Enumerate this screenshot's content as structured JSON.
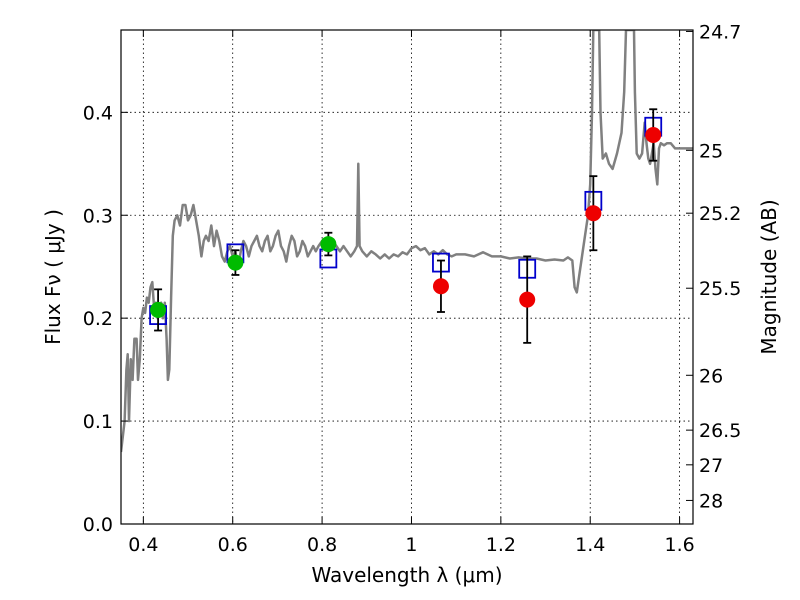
{
  "chart_data": {
    "type": "scatter",
    "title": "",
    "xlabel": "Wavelength  λ (μm)",
    "ylabel": "Flux  Fν  ( μJy )",
    "y2label": "Magnitude (AB)",
    "xlim": [
      0.35,
      1.63
    ],
    "ylim": [
      0.0,
      0.48
    ],
    "grid": true,
    "legend": "none",
    "xticks": [
      {
        "v": 0.4,
        "label": "0.4"
      },
      {
        "v": 0.6,
        "label": "0.6"
      },
      {
        "v": 0.8,
        "label": "0.8"
      },
      {
        "v": 1.0,
        "label": "1"
      },
      {
        "v": 1.2,
        "label": "1.2"
      },
      {
        "v": 1.4,
        "label": "1.4"
      },
      {
        "v": 1.6,
        "label": "1.6"
      }
    ],
    "yticks": [
      {
        "v": 0.0,
        "label": "0.0"
      },
      {
        "v": 0.1,
        "label": "0.1"
      },
      {
        "v": 0.2,
        "label": "0.2"
      },
      {
        "v": 0.3,
        "label": "0.3"
      },
      {
        "v": 0.4,
        "label": "0.4"
      }
    ],
    "y2ticks": [
      {
        "label": "24.7",
        "flux": 0.4786
      },
      {
        "label": "25",
        "flux": 0.3631
      },
      {
        "label": "25.2",
        "flux": 0.302
      },
      {
        "label": "25.5",
        "flux": 0.2291
      },
      {
        "label": "26",
        "flux": 0.1445
      },
      {
        "label": "26.5",
        "flux": 0.0912
      },
      {
        "label": "27",
        "flux": 0.0575
      },
      {
        "label": "28",
        "flux": 0.0229
      }
    ],
    "colors": {
      "spectrum": "#808080",
      "green_points": "#00bb00",
      "red_points": "#ee0000",
      "model_boxes": "#0000cc",
      "errorbars": "#000000"
    },
    "series": [
      {
        "kind": "line",
        "color": "#808080",
        "points": [
          [
            0.35,
            0.07
          ],
          [
            0.358,
            0.1
          ],
          [
            0.362,
            0.15
          ],
          [
            0.365,
            0.165
          ],
          [
            0.368,
            0.1
          ],
          [
            0.372,
            0.16
          ],
          [
            0.376,
            0.14
          ],
          [
            0.38,
            0.18
          ],
          [
            0.385,
            0.18
          ],
          [
            0.388,
            0.14
          ],
          [
            0.392,
            0.16
          ],
          [
            0.396,
            0.2
          ],
          [
            0.4,
            0.21
          ],
          [
            0.404,
            0.205
          ],
          [
            0.408,
            0.22
          ],
          [
            0.412,
            0.215
          ],
          [
            0.416,
            0.23
          ],
          [
            0.42,
            0.235
          ],
          [
            0.424,
            0.21
          ],
          [
            0.428,
            0.215
          ],
          [
            0.432,
            0.2
          ],
          [
            0.436,
            0.21
          ],
          [
            0.44,
            0.215
          ],
          [
            0.444,
            0.2
          ],
          [
            0.448,
            0.215
          ],
          [
            0.452,
            0.18
          ],
          [
            0.455,
            0.14
          ],
          [
            0.458,
            0.15
          ],
          [
            0.462,
            0.22
          ],
          [
            0.466,
            0.28
          ],
          [
            0.47,
            0.295
          ],
          [
            0.476,
            0.3
          ],
          [
            0.482,
            0.29
          ],
          [
            0.488,
            0.31
          ],
          [
            0.494,
            0.31
          ],
          [
            0.5,
            0.295
          ],
          [
            0.506,
            0.3
          ],
          [
            0.512,
            0.31
          ],
          [
            0.518,
            0.295
          ],
          [
            0.524,
            0.28
          ],
          [
            0.53,
            0.26
          ],
          [
            0.535,
            0.275
          ],
          [
            0.54,
            0.28
          ],
          [
            0.546,
            0.275
          ],
          [
            0.552,
            0.29
          ],
          [
            0.558,
            0.27
          ],
          [
            0.564,
            0.285
          ],
          [
            0.57,
            0.275
          ],
          [
            0.576,
            0.26
          ],
          [
            0.582,
            0.255
          ],
          [
            0.588,
            0.265
          ],
          [
            0.594,
            0.27
          ],
          [
            0.6,
            0.26
          ],
          [
            0.606,
            0.265
          ],
          [
            0.612,
            0.25
          ],
          [
            0.618,
            0.265
          ],
          [
            0.624,
            0.275
          ],
          [
            0.63,
            0.27
          ],
          [
            0.636,
            0.26
          ],
          [
            0.642,
            0.27
          ],
          [
            0.648,
            0.275
          ],
          [
            0.654,
            0.28
          ],
          [
            0.66,
            0.27
          ],
          [
            0.666,
            0.265
          ],
          [
            0.672,
            0.275
          ],
          [
            0.678,
            0.28
          ],
          [
            0.684,
            0.265
          ],
          [
            0.69,
            0.27
          ],
          [
            0.696,
            0.28
          ],
          [
            0.702,
            0.285
          ],
          [
            0.708,
            0.27
          ],
          [
            0.714,
            0.265
          ],
          [
            0.72,
            0.255
          ],
          [
            0.726,
            0.27
          ],
          [
            0.732,
            0.28
          ],
          [
            0.738,
            0.275
          ],
          [
            0.744,
            0.26
          ],
          [
            0.75,
            0.265
          ],
          [
            0.756,
            0.275
          ],
          [
            0.762,
            0.27
          ],
          [
            0.768,
            0.26
          ],
          [
            0.774,
            0.265
          ],
          [
            0.78,
            0.27
          ],
          [
            0.786,
            0.265
          ],
          [
            0.792,
            0.27
          ],
          [
            0.8,
            0.275
          ],
          [
            0.808,
            0.27
          ],
          [
            0.816,
            0.265
          ],
          [
            0.824,
            0.275
          ],
          [
            0.832,
            0.27
          ],
          [
            0.84,
            0.265
          ],
          [
            0.848,
            0.27
          ],
          [
            0.856,
            0.265
          ],
          [
            0.864,
            0.26
          ],
          [
            0.872,
            0.265
          ],
          [
            0.878,
            0.27
          ],
          [
            0.881,
            0.35
          ],
          [
            0.884,
            0.27
          ],
          [
            0.89,
            0.265
          ],
          [
            0.9,
            0.26
          ],
          [
            0.91,
            0.265
          ],
          [
            0.92,
            0.262
          ],
          [
            0.93,
            0.258
          ],
          [
            0.94,
            0.262
          ],
          [
            0.95,
            0.258
          ],
          [
            0.96,
            0.262
          ],
          [
            0.97,
            0.26
          ],
          [
            0.98,
            0.264
          ],
          [
            0.99,
            0.262
          ],
          [
            1.0,
            0.268
          ],
          [
            1.01,
            0.27
          ],
          [
            1.02,
            0.266
          ],
          [
            1.03,
            0.268
          ],
          [
            1.04,
            0.262
          ],
          [
            1.05,
            0.265
          ],
          [
            1.06,
            0.262
          ],
          [
            1.07,
            0.266
          ],
          [
            1.08,
            0.262
          ],
          [
            1.09,
            0.26
          ],
          [
            1.1,
            0.262
          ],
          [
            1.12,
            0.262
          ],
          [
            1.14,
            0.26
          ],
          [
            1.16,
            0.264
          ],
          [
            1.18,
            0.26
          ],
          [
            1.2,
            0.26
          ],
          [
            1.22,
            0.258
          ],
          [
            1.24,
            0.259
          ],
          [
            1.26,
            0.258
          ],
          [
            1.28,
            0.258
          ],
          [
            1.3,
            0.256
          ],
          [
            1.32,
            0.257
          ],
          [
            1.34,
            0.256
          ],
          [
            1.35,
            0.259
          ],
          [
            1.36,
            0.256
          ],
          [
            1.365,
            0.23
          ],
          [
            1.37,
            0.225
          ],
          [
            1.375,
            0.24
          ],
          [
            1.385,
            0.27
          ],
          [
            1.395,
            0.3
          ],
          [
            1.4,
            0.33
          ],
          [
            1.404,
            0.4
          ],
          [
            1.407,
            0.48
          ],
          [
            1.42,
            0.48
          ],
          [
            1.423,
            0.4
          ],
          [
            1.428,
            0.355
          ],
          [
            1.435,
            0.36
          ],
          [
            1.442,
            0.35
          ],
          [
            1.45,
            0.345
          ],
          [
            1.46,
            0.36
          ],
          [
            1.47,
            0.38
          ],
          [
            1.476,
            0.42
          ],
          [
            1.48,
            0.48
          ],
          [
            1.498,
            0.48
          ],
          [
            1.5,
            0.42
          ],
          [
            1.504,
            0.36
          ],
          [
            1.51,
            0.355
          ],
          [
            1.516,
            0.36
          ],
          [
            1.522,
            0.39
          ],
          [
            1.526,
            0.37
          ],
          [
            1.53,
            0.355
          ],
          [
            1.534,
            0.35
          ],
          [
            1.538,
            0.36
          ],
          [
            1.542,
            0.37
          ],
          [
            1.546,
            0.345
          ],
          [
            1.55,
            0.33
          ],
          [
            1.554,
            0.365
          ],
          [
            1.558,
            0.37
          ],
          [
            1.565,
            0.368
          ],
          [
            1.572,
            0.37
          ],
          [
            1.58,
            0.37
          ],
          [
            1.59,
            0.365
          ],
          [
            1.6,
            0.365
          ],
          [
            1.61,
            0.365
          ],
          [
            1.62,
            0.365
          ],
          [
            1.63,
            0.365
          ]
        ]
      },
      {
        "kind": "points",
        "color": "#00bb00",
        "points": [
          {
            "x": 0.433,
            "y": 0.208,
            "yerr": 0.02
          },
          {
            "x": 0.606,
            "y": 0.254,
            "yerr": 0.012
          },
          {
            "x": 0.814,
            "y": 0.272,
            "yerr": 0.011
          }
        ]
      },
      {
        "kind": "points",
        "color": "#ee0000",
        "points": [
          {
            "x": 1.066,
            "y": 0.231,
            "yerr": 0.025
          },
          {
            "x": 1.259,
            "y": 0.218,
            "yerr": 0.042
          },
          {
            "x": 1.407,
            "y": 0.302,
            "yerr": 0.036
          },
          {
            "x": 1.541,
            "y": 0.378,
            "yerr": 0.025
          }
        ]
      },
      {
        "kind": "boxes",
        "color": "#0000cc",
        "points": [
          {
            "x": 0.433,
            "y": 0.203
          },
          {
            "x": 0.606,
            "y": 0.263
          },
          {
            "x": 0.814,
            "y": 0.258
          },
          {
            "x": 1.066,
            "y": 0.254
          },
          {
            "x": 1.259,
            "y": 0.248
          },
          {
            "x": 1.407,
            "y": 0.314
          },
          {
            "x": 1.541,
            "y": 0.386
          }
        ]
      }
    ]
  }
}
